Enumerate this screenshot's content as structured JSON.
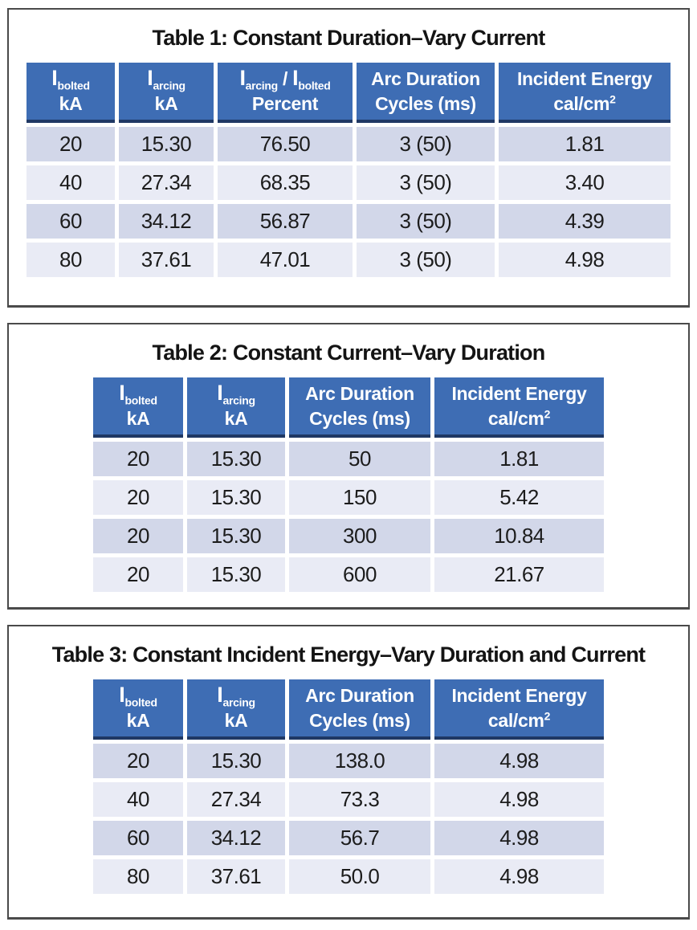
{
  "colors": {
    "header_bg": "#3E6DB4",
    "header_divider": "#1F3864",
    "header_text": "#FFFFFF",
    "row_shade_dark": "#D2D7E9",
    "row_shade_light": "#E9EBF5",
    "panel_border": "#4A4A4A",
    "body_text": "#1C1C1C"
  },
  "tables": [
    {
      "title": "Table 1: Constant Duration–Vary Current",
      "headers": [
        {
          "line1": [
            {
              "big": "I"
            },
            {
              "sub": "bolted"
            }
          ],
          "line2": [
            {
              "t": "kA"
            }
          ]
        },
        {
          "line1": [
            {
              "big": "I"
            },
            {
              "sub": "arcing"
            }
          ],
          "line2": [
            {
              "t": "kA"
            }
          ]
        },
        {
          "line1": [
            {
              "big": "I"
            },
            {
              "sub": "arcing"
            },
            {
              "t": " / "
            },
            {
              "big": "I"
            },
            {
              "sub": "bolted"
            }
          ],
          "line2": [
            {
              "t": "Percent"
            }
          ]
        },
        {
          "line1": [
            {
              "t": "Arc Duration"
            }
          ],
          "line2": [
            {
              "t": "Cycles (ms)"
            }
          ]
        },
        {
          "line1": [
            {
              "t": "Incident Energy"
            }
          ],
          "line2": [
            {
              "t": "cal/cm"
            },
            {
              "sup": "2"
            }
          ]
        }
      ],
      "rows": [
        [
          "20",
          "15.30",
          "76.50",
          "3 (50)",
          "1.81"
        ],
        [
          "40",
          "27.34",
          "68.35",
          "3 (50)",
          "3.40"
        ],
        [
          "60",
          "34.12",
          "56.87",
          "3 (50)",
          "4.39"
        ],
        [
          "80",
          "37.61",
          "47.01",
          "3 (50)",
          "4.98"
        ]
      ]
    },
    {
      "title": "Table 2: Constant Current–Vary Duration",
      "headers": [
        {
          "line1": [
            {
              "big": "I"
            },
            {
              "sub": "bolted"
            }
          ],
          "line2": [
            {
              "t": "kA"
            }
          ]
        },
        {
          "line1": [
            {
              "big": "I"
            },
            {
              "sub": "arcing"
            }
          ],
          "line2": [
            {
              "t": "kA"
            }
          ]
        },
        {
          "line1": [
            {
              "t": "Arc Duration"
            }
          ],
          "line2": [
            {
              "t": "Cycles (ms)"
            }
          ]
        },
        {
          "line1": [
            {
              "t": "Incident Energy"
            }
          ],
          "line2": [
            {
              "t": "cal/cm"
            },
            {
              "sup": "2"
            }
          ]
        }
      ],
      "rows": [
        [
          "20",
          "15.30",
          "50",
          "1.81"
        ],
        [
          "20",
          "15.30",
          "150",
          "5.42"
        ],
        [
          "20",
          "15.30",
          "300",
          "10.84"
        ],
        [
          "20",
          "15.30",
          "600",
          "21.67"
        ]
      ]
    },
    {
      "title": "Table 3: Constant Incident Energy–Vary Duration and Current",
      "headers": [
        {
          "line1": [
            {
              "big": "I"
            },
            {
              "sub": "bolted"
            }
          ],
          "line2": [
            {
              "t": "kA"
            }
          ]
        },
        {
          "line1": [
            {
              "big": "I"
            },
            {
              "sub": "arcing"
            }
          ],
          "line2": [
            {
              "t": "kA"
            }
          ]
        },
        {
          "line1": [
            {
              "t": "Arc Duration"
            }
          ],
          "line2": [
            {
              "t": "Cycles (ms)"
            }
          ]
        },
        {
          "line1": [
            {
              "t": "Incident Energy"
            }
          ],
          "line2": [
            {
              "t": "cal/cm"
            },
            {
              "sup": "2"
            }
          ]
        }
      ],
      "rows": [
        [
          "20",
          "15.30",
          "138.0",
          "4.98"
        ],
        [
          "40",
          "27.34",
          "73.3",
          "4.98"
        ],
        [
          "60",
          "34.12",
          "56.7",
          "4.98"
        ],
        [
          "80",
          "37.61",
          "50.0",
          "4.98"
        ]
      ]
    }
  ]
}
